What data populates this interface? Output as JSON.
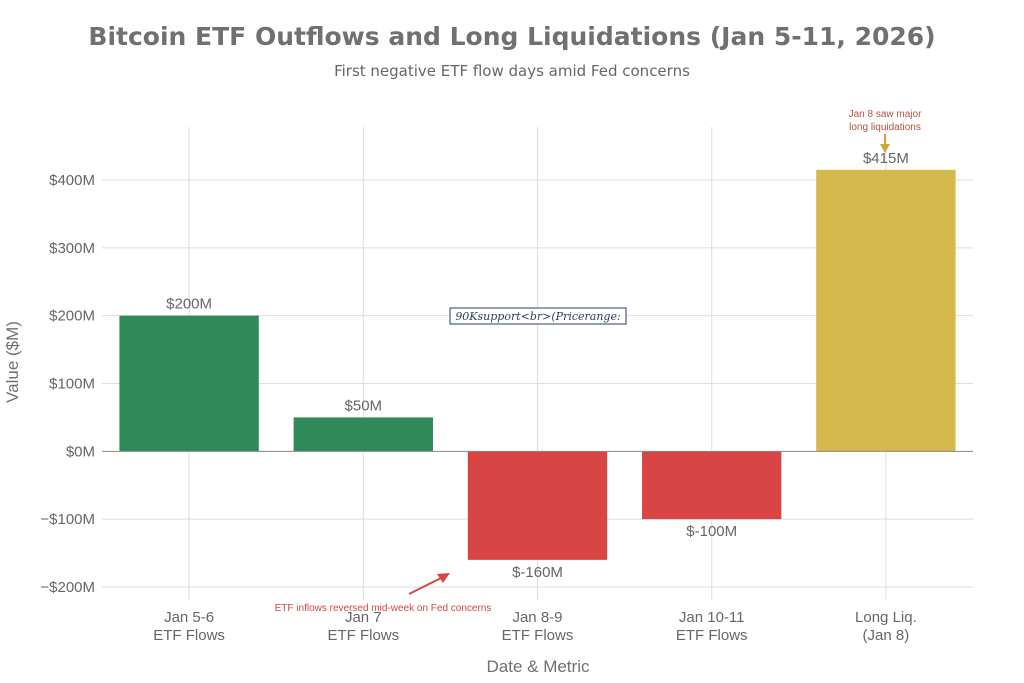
{
  "colors": {
    "green": "#2e8b57",
    "red": "#d94545",
    "gold": "#d4b94c",
    "grid": "#dddddd",
    "zero_line": "#888888",
    "annotation_red": "#d94545",
    "annotation_brown": "#b5503a",
    "arrow_gold": "#c9a93a",
    "box_border": "#2a3f5f"
  },
  "chart_data": {
    "type": "bar",
    "title": "Bitcoin ETF Outflows and Long Liquidations (Jan 5-11, 2026)",
    "subtitle": "First negative ETF flow days amid Fed concerns",
    "xlabel": "Date & Metric",
    "ylabel": "Value ($M)",
    "ylim": [
      -200,
      400
    ],
    "yticks": [
      {
        "value": 400,
        "label": "$400M"
      },
      {
        "value": 300,
        "label": "$300M"
      },
      {
        "value": 200,
        "label": "$200M"
      },
      {
        "value": 100,
        "label": "$100M"
      },
      {
        "value": 0,
        "label": "$0M"
      },
      {
        "value": -100,
        "label": "−$100M"
      },
      {
        "value": -200,
        "label": "−$200M"
      }
    ],
    "categories": [
      {
        "line1": "Jan 5-6",
        "line2": "ETF Flows"
      },
      {
        "line1": "Jan 7",
        "line2": "ETF Flows"
      },
      {
        "line1": "Jan 8-9",
        "line2": "ETF Flows"
      },
      {
        "line1": "Jan 10-11",
        "line2": "ETF Flows"
      },
      {
        "line1": "Long Liq.",
        "line2": "(Jan 8)"
      }
    ],
    "values": [
      200,
      50,
      -160,
      -100,
      415
    ],
    "value_labels": [
      "$200M",
      "$50M",
      "$-160M",
      "$-100M",
      "$415M"
    ],
    "bar_colors": [
      "green",
      "green",
      "red",
      "red",
      "gold"
    ],
    "grid": true,
    "annotations": {
      "etf_reversal": "ETF inflows reversed mid-week on Fed concerns",
      "liquidations_line1": "Jan 8 saw major",
      "liquidations_line2": "long liquidations",
      "support_box": "90Ksupport<br>(Pricerange:"
    }
  }
}
